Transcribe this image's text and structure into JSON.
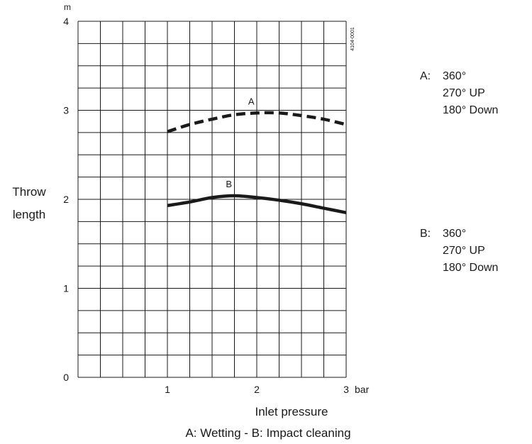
{
  "figure_code": "4104-0001",
  "legend": [
    {
      "key": "A:",
      "lines": [
        "360°",
        "270° UP",
        "180° Down"
      ]
    },
    {
      "key": "B:",
      "lines": [
        "360°",
        "270° UP",
        "180° Down"
      ]
    }
  ],
  "chart_data": {
    "type": "line",
    "ylabel": [
      "Throw",
      "length"
    ],
    "y_unit": "m",
    "x_unit": "bar",
    "xlabel": "Inlet pressure",
    "caption": "A: Wetting - B: Impact cleaning",
    "xlim": [
      0,
      3
    ],
    "ylim": [
      0,
      4
    ],
    "x_ticks": [
      "1",
      "2",
      "3"
    ],
    "x_tick_values": [
      1,
      2,
      3
    ],
    "y_ticks": [
      "0",
      "1",
      "2",
      "3",
      "4"
    ],
    "y_tick_values": [
      0,
      1,
      2,
      3,
      4
    ],
    "grid": true,
    "grid_x_step": 0.25,
    "grid_y_step": 0.25,
    "series": [
      {
        "name": "A",
        "style": "dashed",
        "x": [
          1.0,
          1.25,
          1.5,
          1.75,
          2.0,
          2.25,
          2.5,
          2.75,
          3.0
        ],
        "y": [
          2.76,
          2.84,
          2.9,
          2.95,
          2.97,
          2.97,
          2.94,
          2.9,
          2.84
        ]
      },
      {
        "name": "B",
        "style": "solid",
        "x": [
          1.0,
          1.25,
          1.5,
          1.75,
          2.0,
          2.25,
          2.5,
          2.75,
          3.0
        ],
        "y": [
          1.93,
          1.97,
          2.02,
          2.04,
          2.02,
          1.99,
          1.95,
          1.9,
          1.85
        ]
      }
    ]
  }
}
